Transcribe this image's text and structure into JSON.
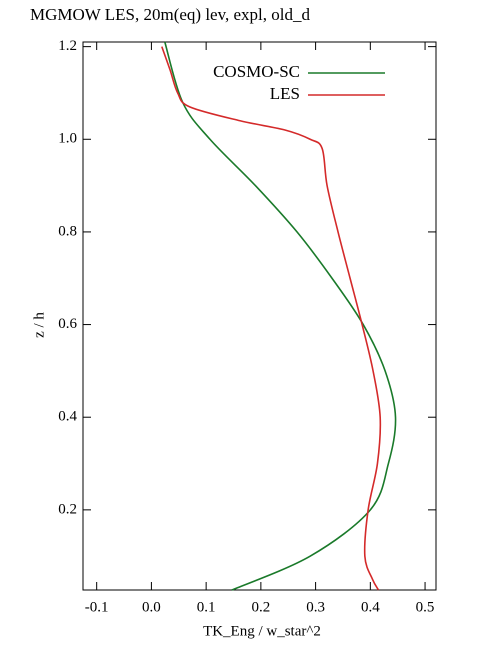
{
  "chart_data": {
    "type": "profile",
    "title": "MGMOW LES, 20m(eq) lev, expl, old_d",
    "xlabel": "TK_Eng / w_star^2",
    "ylabel": "z / h",
    "xlim": [
      -0.125,
      0.52
    ],
    "ylim": [
      0.027,
      1.21
    ],
    "xticks": [
      -0.1,
      {
        "value": 0,
        "label": "0.0"
      },
      0.1,
      0.2,
      0.3,
      0.4,
      0.5
    ],
    "yticks": [
      0.2,
      0.4,
      0.6,
      0.8,
      {
        "value": 1,
        "label": "1.0"
      },
      1.2
    ],
    "legend": "upper right",
    "series": [
      {
        "name": "COSMO-SC",
        "color": "#1a7a2a",
        "x": [
          0.0245,
          0.057,
          0.107,
          0.19,
          0.266,
          0.33,
          0.387,
          0.427,
          0.446,
          0.433,
          0.4,
          0.29,
          0.147
        ],
        "y": [
          1.21,
          1.08,
          1.0,
          0.9,
          0.8,
          0.7,
          0.6,
          0.5,
          0.4,
          0.3,
          0.2,
          0.1,
          0.027
        ]
      },
      {
        "name": "LES",
        "color": "#d42a2a",
        "x": [
          0.019,
          0.034,
          0.048,
          0.07,
          0.162,
          0.244,
          0.29,
          0.312,
          0.321,
          0.341,
          0.363,
          0.385,
          0.405,
          0.418,
          0.413,
          0.396,
          0.39,
          0.404,
          0.415
        ],
        "y": [
          1.2,
          1.15,
          1.1,
          1.07,
          1.04,
          1.02,
          1.0,
          0.98,
          0.9,
          0.8,
          0.7,
          0.6,
          0.5,
          0.4,
          0.3,
          0.2,
          0.1,
          0.05,
          0.027
        ]
      }
    ]
  }
}
